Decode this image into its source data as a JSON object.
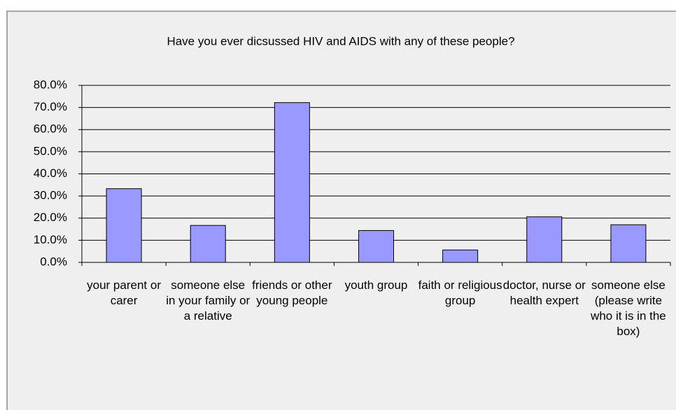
{
  "chart_data": {
    "type": "bar",
    "title": "Have you ever dicsussed HIV and AIDS with any of these people?",
    "categories": [
      "your parent or carer",
      "someone else in your family or a relative",
      "friends or other young people",
      "youth group",
      "faith or religious group",
      "doctor, nurse or health expert",
      "someone else (please write who it is in the box)"
    ],
    "values": [
      33.3,
      16.7,
      72.2,
      14.4,
      5.6,
      20.6,
      17.0
    ],
    "color": "#9999ff",
    "ylim": [
      0,
      80
    ],
    "yticks": [
      {
        "value": 0,
        "label": "0.0%"
      },
      {
        "value": 10,
        "label": "10.0%"
      },
      {
        "value": 20,
        "label": "20.0%"
      },
      {
        "value": 30,
        "label": "30.0%"
      },
      {
        "value": 40,
        "label": "40.0%"
      },
      {
        "value": 50,
        "label": "50.0%"
      },
      {
        "value": 60,
        "label": "60.0%"
      },
      {
        "value": 70,
        "label": "70.0%"
      },
      {
        "value": 80,
        "label": "80.0%"
      }
    ],
    "grid": true
  }
}
